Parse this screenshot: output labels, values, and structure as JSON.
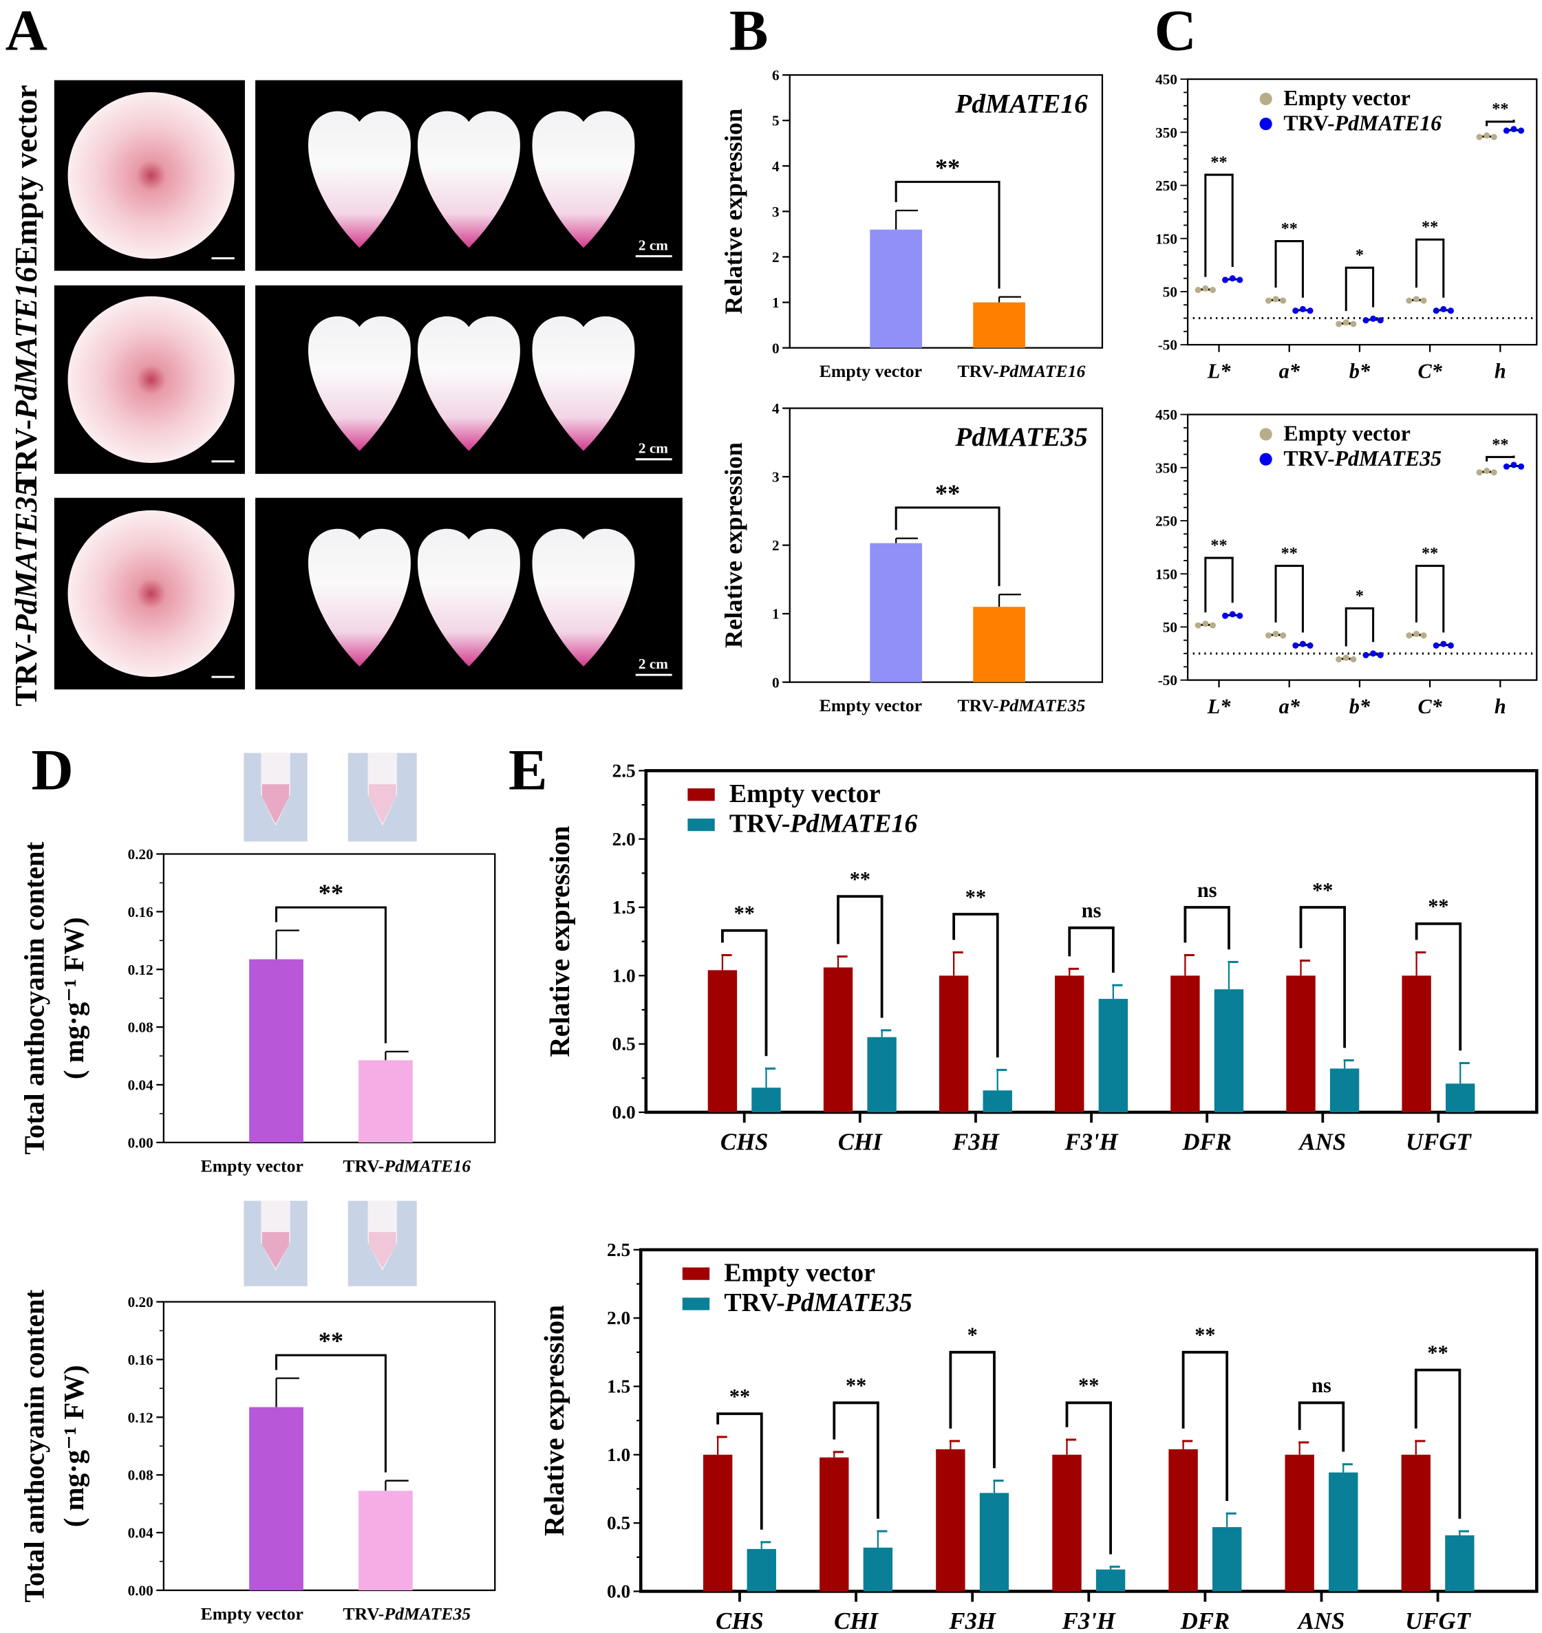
{
  "panel_labels": [
    "A",
    "B",
    "C",
    "D",
    "E"
  ],
  "panel_a": {
    "rows": [
      {
        "label": "Empty vector"
      },
      {
        "prefix": "TRV-",
        "gene": "PdMATE16"
      },
      {
        "prefix": "TRV-",
        "gene": "PdMATE35"
      }
    ],
    "scale_label": "2 cm",
    "colors": {
      "background": "#000000",
      "petal": "#f7f5f6",
      "petal_base": "#d03a8c",
      "flower": "#f3c4cc"
    }
  },
  "chart_data": [
    {
      "id": "B-top",
      "type": "bar",
      "title": "PdMATE16",
      "ylabel": "Relative expression",
      "xlabel": "",
      "ylim": [
        0,
        6
      ],
      "ytick_labels": [
        "0",
        "1",
        "2",
        "3",
        "4",
        "5",
        "6"
      ],
      "categories": [
        {
          "label": "Empty vector"
        },
        {
          "prefix": "TRV-",
          "gene": "PdMATE16"
        }
      ],
      "values": [
        2.6,
        1.0
      ],
      "errors": [
        0.42,
        0.12
      ],
      "colors": [
        "#9090f8",
        "#ff8000"
      ],
      "significance": "**",
      "bracket_y": 3.65
    },
    {
      "id": "B-bottom",
      "type": "bar",
      "title": "PdMATE35",
      "ylabel": "Relative expression",
      "xlabel": "",
      "ylim": [
        0,
        4
      ],
      "ytick_labels": [
        "0",
        "1",
        "2",
        "3",
        "4"
      ],
      "categories": [
        {
          "label": "Empty vector"
        },
        {
          "prefix": "TRV-",
          "gene": "PdMATE35"
        }
      ],
      "values": [
        2.03,
        1.1
      ],
      "errors": [
        0.07,
        0.18
      ],
      "colors": [
        "#9090f8",
        "#ff8000"
      ],
      "significance": "**",
      "bracket_y": 2.55
    },
    {
      "id": "C-top",
      "type": "scatter",
      "ylim": [
        -50,
        450
      ],
      "ytick_labels": [
        "-50",
        "50",
        "150",
        "250",
        "350",
        "450"
      ],
      "categories": [
        "L*",
        "a*",
        "b*",
        "C*",
        "h"
      ],
      "series": [
        {
          "label": "Empty vector",
          "color": "#b8ad88",
          "values": [
            54,
            34,
            -10,
            34,
            342
          ]
        },
        {
          "prefix": "TRV-",
          "gene": "PdMATE16",
          "color": "#0000ee",
          "values": [
            73,
            15,
            -3,
            15,
            354
          ]
        }
      ],
      "significance": [
        "**",
        "**",
        "*",
        "**",
        "**"
      ],
      "bracket_y": [
        270,
        145,
        95,
        148,
        370
      ],
      "reference_line": 0
    },
    {
      "id": "C-bottom",
      "type": "scatter",
      "ylim": [
        -50,
        450
      ],
      "ytick_labels": [
        "-50",
        "50",
        "150",
        "250",
        "350",
        "450"
      ],
      "categories": [
        "L*",
        "a*",
        "b*",
        "C*",
        "h"
      ],
      "series": [
        {
          "label": "Empty vector",
          "color": "#b8ad88",
          "values": [
            54,
            35,
            -10,
            35,
            342
          ]
        },
        {
          "prefix": "TRV-",
          "gene": "PdMATE35",
          "color": "#0000ee",
          "values": [
            72,
            16,
            -2,
            16,
            353
          ]
        }
      ],
      "significance": [
        "**",
        "**",
        "*",
        "**",
        "**"
      ],
      "bracket_y": [
        180,
        165,
        85,
        165,
        370
      ],
      "reference_line": 0
    },
    {
      "id": "D-top",
      "type": "bar",
      "title": "",
      "ylabel": "Total anthocyanin content",
      "ylabel2": "( mg·g⁻¹ FW)",
      "xlabel": "",
      "ylim": [
        0,
        0.2
      ],
      "ytick_labels": [
        "0.00",
        "0.04",
        "0.08",
        "0.12",
        "0.16",
        "0.20"
      ],
      "categories": [
        {
          "label": "Empty vector"
        },
        {
          "prefix": "TRV-",
          "gene": "PdMATE16"
        }
      ],
      "values": [
        0.127,
        0.057
      ],
      "errors": [
        0.02,
        0.006
      ],
      "colors": [
        "#b857d8",
        "#f5aee5"
      ],
      "significance": "**",
      "bracket_y": 0.163
    },
    {
      "id": "D-bottom",
      "type": "bar",
      "title": "",
      "ylabel": "Total anthocyanin content",
      "ylabel2": "( mg·g⁻¹ FW)",
      "xlabel": "",
      "ylim": [
        0,
        0.2
      ],
      "ytick_labels": [
        "0.00",
        "0.04",
        "0.08",
        "0.12",
        "0.16",
        "0.20"
      ],
      "categories": [
        {
          "label": "Empty vector"
        },
        {
          "prefix": "TRV-",
          "gene": "PdMATE35"
        }
      ],
      "values": [
        0.127,
        0.069
      ],
      "errors": [
        0.02,
        0.007
      ],
      "colors": [
        "#b857d8",
        "#f5aee5"
      ],
      "significance": "**",
      "bracket_y": 0.163
    },
    {
      "id": "E-top",
      "type": "bar",
      "ylabel": "Relative expression",
      "ylim": [
        0,
        2.5
      ],
      "ytick_labels": [
        "0.0",
        "0.5",
        "1.0",
        "1.5",
        "2.0",
        "2.5"
      ],
      "categories": [
        "CHS",
        "CHI",
        "F3H",
        "F3'H",
        "DFR",
        "ANS",
        "UFGT"
      ],
      "series": [
        {
          "label": "Empty vector",
          "color": "#a00000",
          "values": [
            1.04,
            1.06,
            1.0,
            1.0,
            1.0,
            1.0,
            1.0
          ],
          "errors": [
            0.11,
            0.08,
            0.17,
            0.05,
            0.15,
            0.11,
            0.17
          ]
        },
        {
          "prefix": "TRV-",
          "gene": "PdMATE16",
          "color": "#0a7f98",
          "values": [
            0.18,
            0.55,
            0.16,
            0.83,
            0.9,
            0.32,
            0.21
          ],
          "errors": [
            0.14,
            0.05,
            0.15,
            0.1,
            0.2,
            0.06,
            0.15
          ]
        }
      ],
      "significance": [
        "**",
        "**",
        "**",
        "ns",
        "ns",
        "**",
        "**"
      ],
      "bracket_y": [
        1.33,
        1.58,
        1.45,
        1.35,
        1.5,
        1.5,
        1.38
      ]
    },
    {
      "id": "E-bottom",
      "type": "bar",
      "ylabel": "Relative expression",
      "ylim": [
        0,
        2.5
      ],
      "ytick_labels": [
        "0.0",
        "0.5",
        "1.0",
        "1.5",
        "2.0",
        "2.5"
      ],
      "categories": [
        "CHS",
        "CHI",
        "F3H",
        "F3'H",
        "DFR",
        "ANS",
        "UFGT"
      ],
      "series": [
        {
          "label": "Empty vector",
          "color": "#a00000",
          "values": [
            1.0,
            0.98,
            1.04,
            1.0,
            1.04,
            1.0,
            1.0
          ],
          "errors": [
            0.13,
            0.04,
            0.06,
            0.11,
            0.06,
            0.09,
            0.1
          ]
        },
        {
          "prefix": "TRV-",
          "gene": "PdMATE35",
          "color": "#0a7f98",
          "values": [
            0.31,
            0.32,
            0.72,
            0.16,
            0.47,
            0.87,
            0.41
          ],
          "errors": [
            0.05,
            0.12,
            0.09,
            0.02,
            0.1,
            0.06,
            0.03
          ]
        }
      ],
      "significance": [
        "**",
        "**",
        "*",
        "**",
        "**",
        "ns",
        "**"
      ],
      "bracket_y": [
        1.3,
        1.38,
        1.75,
        1.38,
        1.75,
        1.38,
        1.62
      ]
    }
  ]
}
